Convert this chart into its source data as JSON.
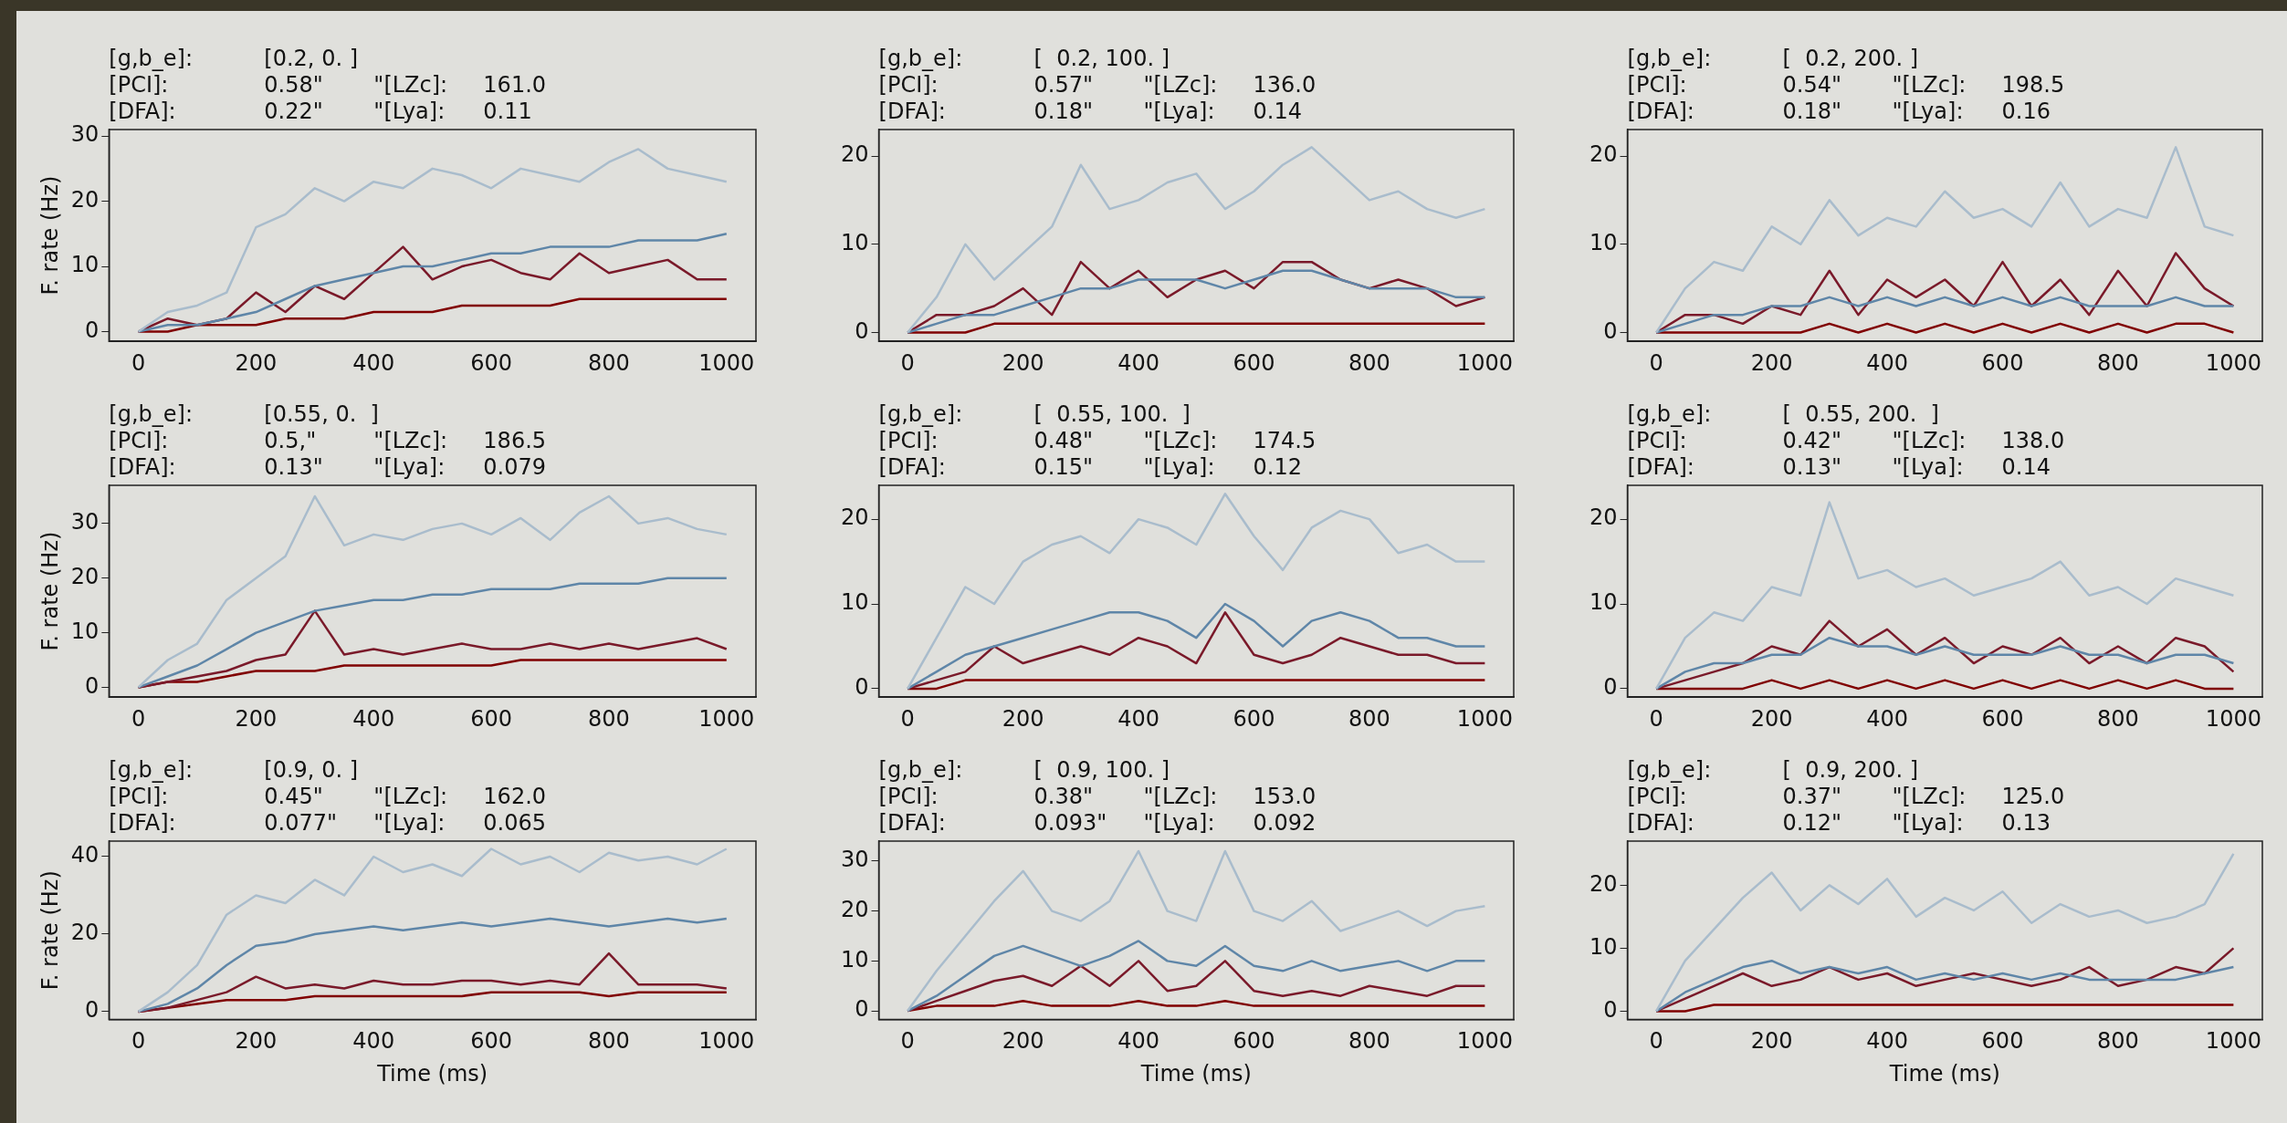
{
  "chart_data": [
    {
      "type": "line",
      "title": "[g,b_e]:\t[0.2, 0. ]\n[PCI]:\t0.58\"\t\"[LZc]:\t161.0\n[DFA]:\t0.22\"\t\"[Lya]:\t0.11",
      "ylabel": "F. rate (Hz)",
      "x": [
        0,
        50,
        100,
        150,
        200,
        250,
        300,
        350,
        400,
        450,
        500,
        550,
        600,
        650,
        700,
        750,
        800,
        850,
        900,
        950,
        1000
      ],
      "xlim": [
        -50,
        1050
      ],
      "xticks": [
        0,
        200,
        400,
        600,
        800,
        1000
      ],
      "ylim": [
        -1.5,
        31
      ],
      "yticks": [
        0,
        10,
        20,
        30
      ],
      "series": [
        {
          "color": "#a9bccc",
          "values": [
            0,
            3,
            4,
            6,
            16,
            18,
            22,
            20,
            23,
            22,
            25,
            24,
            22,
            25,
            24,
            23,
            26,
            28,
            25,
            24,
            23
          ]
        },
        {
          "color": "#5f86a8",
          "values": [
            0,
            1,
            1,
            2,
            3,
            5,
            7,
            8,
            9,
            10,
            10,
            11,
            12,
            12,
            13,
            13,
            13,
            14,
            14,
            14,
            15
          ]
        },
        {
          "color": "#7a1a2a",
          "values": [
            0,
            2,
            1,
            2,
            6,
            3,
            7,
            5,
            9,
            13,
            8,
            10,
            11,
            9,
            8,
            12,
            9,
            10,
            11,
            8,
            8
          ]
        },
        {
          "color": "#800000",
          "values": [
            0,
            0,
            1,
            1,
            1,
            2,
            2,
            2,
            3,
            3,
            3,
            4,
            4,
            4,
            4,
            5,
            5,
            5,
            5,
            5,
            5
          ]
        }
      ]
    },
    {
      "type": "line",
      "title": "[g,b_e]:\t[  0.2, 100. ]\n[PCI]:\t0.57\"\t\"[LZc]:\t136.0\n[DFA]:\t0.18\"\t\"[Lya]:\t0.14",
      "x": [
        0,
        50,
        100,
        150,
        200,
        250,
        300,
        350,
        400,
        450,
        500,
        550,
        600,
        650,
        700,
        750,
        800,
        850,
        900,
        950,
        1000
      ],
      "xlim": [
        -50,
        1050
      ],
      "xticks": [
        0,
        200,
        400,
        600,
        800,
        1000
      ],
      "ylim": [
        -1,
        23
      ],
      "yticks": [
        0,
        10,
        20
      ],
      "series": [
        {
          "color": "#a9bccc",
          "values": [
            0,
            4,
            10,
            6,
            9,
            12,
            19,
            14,
            15,
            17,
            18,
            14,
            16,
            19,
            21,
            18,
            15,
            16,
            14,
            13,
            14
          ]
        },
        {
          "color": "#5f86a8",
          "values": [
            0,
            1,
            2,
            2,
            3,
            4,
            5,
            5,
            6,
            6,
            6,
            5,
            6,
            7,
            7,
            6,
            5,
            5,
            5,
            4,
            4
          ]
        },
        {
          "color": "#7a1a2a",
          "values": [
            0,
            2,
            2,
            3,
            5,
            2,
            8,
            5,
            7,
            4,
            6,
            7,
            5,
            8,
            8,
            6,
            5,
            6,
            5,
            3,
            4
          ]
        },
        {
          "color": "#800000",
          "values": [
            0,
            0,
            0,
            1,
            1,
            1,
            1,
            1,
            1,
            1,
            1,
            1,
            1,
            1,
            1,
            1,
            1,
            1,
            1,
            1,
            1
          ]
        }
      ]
    },
    {
      "type": "line",
      "title": "[g,b_e]:\t[  0.2, 200. ]\n[PCI]:\t0.54\"\t\"[LZc]:\t198.5\n[DFA]:\t0.18\"\t\"[Lya]:\t0.16",
      "x": [
        0,
        50,
        100,
        150,
        200,
        250,
        300,
        350,
        400,
        450,
        500,
        550,
        600,
        650,
        700,
        750,
        800,
        850,
        900,
        950,
        1000
      ],
      "xlim": [
        -50,
        1050
      ],
      "xticks": [
        0,
        200,
        400,
        600,
        800,
        1000
      ],
      "ylim": [
        -1,
        23
      ],
      "yticks": [
        0,
        10,
        20
      ],
      "series": [
        {
          "color": "#a9bccc",
          "values": [
            0,
            5,
            8,
            7,
            12,
            10,
            15,
            11,
            13,
            12,
            16,
            13,
            14,
            12,
            17,
            12,
            14,
            13,
            21,
            12,
            11
          ]
        },
        {
          "color": "#5f86a8",
          "values": [
            0,
            1,
            2,
            2,
            3,
            3,
            4,
            3,
            4,
            3,
            4,
            3,
            4,
            3,
            4,
            3,
            3,
            3,
            4,
            3,
            3
          ]
        },
        {
          "color": "#7a1a2a",
          "values": [
            0,
            2,
            2,
            1,
            3,
            2,
            7,
            2,
            6,
            4,
            6,
            3,
            8,
            3,
            6,
            2,
            7,
            3,
            9,
            5,
            3
          ]
        },
        {
          "color": "#800000",
          "values": [
            0,
            0,
            0,
            0,
            0,
            0,
            1,
            0,
            1,
            0,
            1,
            0,
            1,
            0,
            1,
            0,
            1,
            0,
            1,
            1,
            0
          ]
        }
      ]
    },
    {
      "type": "line",
      "title": "[g,b_e]:\t[0.55, 0.  ]\n[PCI]:\t0.5,\"\t\"[LZc]:\t186.5\n[DFA]:\t0.13\"\t\"[Lya]:\t0.079",
      "ylabel": "F. rate (Hz)",
      "x": [
        0,
        50,
        100,
        150,
        200,
        250,
        300,
        350,
        400,
        450,
        500,
        550,
        600,
        650,
        700,
        750,
        800,
        850,
        900,
        950,
        1000
      ],
      "xlim": [
        -50,
        1050
      ],
      "xticks": [
        0,
        200,
        400,
        600,
        800,
        1000
      ],
      "ylim": [
        -1.8,
        37
      ],
      "yticks": [
        0,
        10,
        20,
        30
      ],
      "series": [
        {
          "color": "#a9bccc",
          "values": [
            0,
            5,
            8,
            16,
            20,
            24,
            35,
            26,
            28,
            27,
            29,
            30,
            28,
            31,
            27,
            32,
            35,
            30,
            31,
            29,
            28
          ]
        },
        {
          "color": "#5f86a8",
          "values": [
            0,
            2,
            4,
            7,
            10,
            12,
            14,
            15,
            16,
            16,
            17,
            17,
            18,
            18,
            18,
            19,
            19,
            19,
            20,
            20,
            20
          ]
        },
        {
          "color": "#7a1a2a",
          "values": [
            0,
            1,
            2,
            3,
            5,
            6,
            14,
            6,
            7,
            6,
            7,
            8,
            7,
            7,
            8,
            7,
            8,
            7,
            8,
            9,
            7
          ]
        },
        {
          "color": "#800000",
          "values": [
            0,
            1,
            1,
            2,
            3,
            3,
            3,
            4,
            4,
            4,
            4,
            4,
            4,
            5,
            5,
            5,
            5,
            5,
            5,
            5,
            5
          ]
        }
      ]
    },
    {
      "type": "line",
      "title": "[g,b_e]:\t[  0.55, 100.  ]\n[PCI]:\t0.48\"\t\"[LZc]:\t174.5\n[DFA]:\t0.15\"\t\"[Lya]:\t0.12",
      "x": [
        0,
        50,
        100,
        150,
        200,
        250,
        300,
        350,
        400,
        450,
        500,
        550,
        600,
        650,
        700,
        750,
        800,
        850,
        900,
        950,
        1000
      ],
      "xlim": [
        -50,
        1050
      ],
      "xticks": [
        0,
        200,
        400,
        600,
        800,
        1000
      ],
      "ylim": [
        -1,
        24
      ],
      "yticks": [
        0,
        10,
        20
      ],
      "series": [
        {
          "color": "#a9bccc",
          "values": [
            0,
            6,
            12,
            10,
            15,
            17,
            18,
            16,
            20,
            19,
            17,
            23,
            18,
            14,
            19,
            21,
            20,
            16,
            17,
            15,
            15
          ]
        },
        {
          "color": "#5f86a8",
          "values": [
            0,
            2,
            4,
            5,
            6,
            7,
            8,
            9,
            9,
            8,
            6,
            10,
            8,
            5,
            8,
            9,
            8,
            6,
            6,
            5,
            5
          ]
        },
        {
          "color": "#7a1a2a",
          "values": [
            0,
            1,
            2,
            5,
            3,
            4,
            5,
            4,
            6,
            5,
            3,
            9,
            4,
            3,
            4,
            6,
            5,
            4,
            4,
            3,
            3
          ]
        },
        {
          "color": "#800000",
          "values": [
            0,
            0,
            1,
            1,
            1,
            1,
            1,
            1,
            1,
            1,
            1,
            1,
            1,
            1,
            1,
            1,
            1,
            1,
            1,
            1,
            1
          ]
        }
      ]
    },
    {
      "type": "line",
      "title": "[g,b_e]:\t[  0.55, 200.  ]\n[PCI]:\t0.42\"\t\"[LZc]:\t138.0\n[DFA]:\t0.13\"\t\"[Lya]:\t0.14",
      "x": [
        0,
        50,
        100,
        150,
        200,
        250,
        300,
        350,
        400,
        450,
        500,
        550,
        600,
        650,
        700,
        750,
        800,
        850,
        900,
        950,
        1000
      ],
      "xlim": [
        -50,
        1050
      ],
      "xticks": [
        0,
        200,
        400,
        600,
        800,
        1000
      ],
      "ylim": [
        -1,
        24
      ],
      "yticks": [
        0,
        10,
        20
      ],
      "series": [
        {
          "color": "#a9bccc",
          "values": [
            0,
            6,
            9,
            8,
            12,
            11,
            22,
            13,
            14,
            12,
            13,
            11,
            12,
            13,
            15,
            11,
            12,
            10,
            13,
            12,
            11
          ]
        },
        {
          "color": "#5f86a8",
          "values": [
            0,
            2,
            3,
            3,
            4,
            4,
            6,
            5,
            5,
            4,
            5,
            4,
            4,
            4,
            5,
            4,
            4,
            3,
            4,
            4,
            3
          ]
        },
        {
          "color": "#7a1a2a",
          "values": [
            0,
            1,
            2,
            3,
            5,
            4,
            8,
            5,
            7,
            4,
            6,
            3,
            5,
            4,
            6,
            3,
            5,
            3,
            6,
            5,
            2
          ]
        },
        {
          "color": "#800000",
          "values": [
            0,
            0,
            0,
            0,
            1,
            0,
            1,
            0,
            1,
            0,
            1,
            0,
            1,
            0,
            1,
            0,
            1,
            0,
            1,
            0,
            0
          ]
        }
      ]
    },
    {
      "type": "line",
      "title": "[g,b_e]:\t[0.9, 0. ]\n[PCI]:\t0.45\"\t\"[LZc]:\t162.0\n[DFA]:\t0.077\"\t\"[Lya]:\t0.065",
      "xlabel": "Time (ms)",
      "ylabel": "F. rate (Hz)",
      "x": [
        0,
        50,
        100,
        150,
        200,
        250,
        300,
        350,
        400,
        450,
        500,
        550,
        600,
        650,
        700,
        750,
        800,
        850,
        900,
        950,
        1000
      ],
      "xlim": [
        -50,
        1050
      ],
      "xticks": [
        0,
        200,
        400,
        600,
        800,
        1000
      ],
      "ylim": [
        -2,
        44
      ],
      "yticks": [
        0,
        20,
        40
      ],
      "series": [
        {
          "color": "#a9bccc",
          "values": [
            0,
            5,
            12,
            25,
            30,
            28,
            34,
            30,
            40,
            36,
            38,
            35,
            42,
            38,
            40,
            36,
            41,
            39,
            40,
            38,
            42
          ]
        },
        {
          "color": "#5f86a8",
          "values": [
            0,
            2,
            6,
            12,
            17,
            18,
            20,
            21,
            22,
            21,
            22,
            23,
            22,
            23,
            24,
            23,
            22,
            23,
            24,
            23,
            24
          ]
        },
        {
          "color": "#7a1a2a",
          "values": [
            0,
            1,
            3,
            5,
            9,
            6,
            7,
            6,
            8,
            7,
            7,
            8,
            8,
            7,
            8,
            7,
            15,
            7,
            7,
            7,
            6
          ]
        },
        {
          "color": "#800000",
          "values": [
            0,
            1,
            2,
            3,
            3,
            3,
            4,
            4,
            4,
            4,
            4,
            4,
            5,
            5,
            5,
            5,
            4,
            5,
            5,
            5,
            5
          ]
        }
      ]
    },
    {
      "type": "line",
      "title": "[g,b_e]:\t[  0.9, 100. ]\n[PCI]:\t0.38\"\t\"[LZc]:\t153.0\n[DFA]:\t0.093\"\t\"[Lya]:\t0.092",
      "xlabel": "Time (ms)",
      "x": [
        0,
        50,
        100,
        150,
        200,
        250,
        300,
        350,
        400,
        450,
        500,
        550,
        600,
        650,
        700,
        750,
        800,
        850,
        900,
        950,
        1000
      ],
      "xlim": [
        -50,
        1050
      ],
      "xticks": [
        0,
        200,
        400,
        600,
        800,
        1000
      ],
      "ylim": [
        -1.7,
        34
      ],
      "yticks": [
        0,
        10,
        20,
        30
      ],
      "series": [
        {
          "color": "#a9bccc",
          "values": [
            0,
            8,
            15,
            22,
            28,
            20,
            18,
            22,
            32,
            20,
            18,
            32,
            20,
            18,
            22,
            16,
            18,
            20,
            17,
            20,
            21
          ]
        },
        {
          "color": "#5f86a8",
          "values": [
            0,
            3,
            7,
            11,
            13,
            11,
            9,
            11,
            14,
            10,
            9,
            13,
            9,
            8,
            10,
            8,
            9,
            10,
            8,
            10,
            10
          ]
        },
        {
          "color": "#7a1a2a",
          "values": [
            0,
            2,
            4,
            6,
            7,
            5,
            9,
            5,
            10,
            4,
            5,
            10,
            4,
            3,
            4,
            3,
            5,
            4,
            3,
            5,
            5
          ]
        },
        {
          "color": "#800000",
          "values": [
            0,
            1,
            1,
            1,
            2,
            1,
            1,
            1,
            2,
            1,
            1,
            2,
            1,
            1,
            1,
            1,
            1,
            1,
            1,
            1,
            1
          ]
        }
      ]
    },
    {
      "type": "line",
      "title": "[g,b_e]:\t[  0.9, 200. ]\n[PCI]:\t0.37\"\t\"[LZc]:\t125.0\n[DFA]:\t0.12\"\t\"[Lya]:\t0.13",
      "xlabel": "Time (ms)",
      "x": [
        0,
        50,
        100,
        150,
        200,
        250,
        300,
        350,
        400,
        450,
        500,
        550,
        600,
        650,
        700,
        750,
        800,
        850,
        900,
        950,
        1000
      ],
      "xlim": [
        -50,
        1050
      ],
      "xticks": [
        0,
        200,
        400,
        600,
        800,
        1000
      ],
      "ylim": [
        -1.3,
        27
      ],
      "yticks": [
        0,
        10,
        20
      ],
      "series": [
        {
          "color": "#a9bccc",
          "values": [
            0,
            8,
            13,
            18,
            22,
            16,
            20,
            17,
            21,
            15,
            18,
            16,
            19,
            14,
            17,
            15,
            16,
            14,
            15,
            17,
            25
          ]
        },
        {
          "color": "#5f86a8",
          "values": [
            0,
            3,
            5,
            7,
            8,
            6,
            7,
            6,
            7,
            5,
            6,
            5,
            6,
            5,
            6,
            5,
            5,
            5,
            5,
            6,
            7
          ]
        },
        {
          "color": "#7a1a2a",
          "values": [
            0,
            2,
            4,
            6,
            4,
            5,
            7,
            5,
            6,
            4,
            5,
            6,
            5,
            4,
            5,
            7,
            4,
            5,
            7,
            6,
            10
          ]
        },
        {
          "color": "#800000",
          "values": [
            0,
            0,
            1,
            1,
            1,
            1,
            1,
            1,
            1,
            1,
            1,
            1,
            1,
            1,
            1,
            1,
            1,
            1,
            1,
            1,
            1
          ]
        }
      ]
    }
  ]
}
